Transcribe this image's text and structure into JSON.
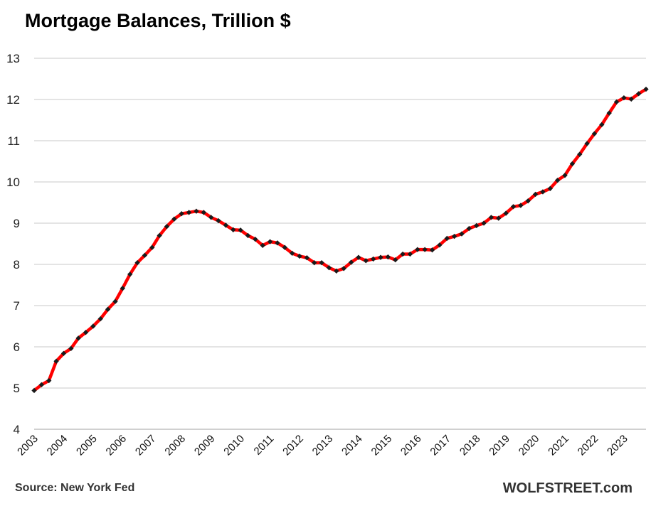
{
  "chart_data": {
    "type": "line",
    "title": "Mortgage Balances, Trillion $",
    "xlabel": "",
    "ylabel": "",
    "ylim": [
      4,
      13
    ],
    "yticks": [
      "4",
      "5",
      "6",
      "7",
      "8",
      "9",
      "10",
      "11",
      "12",
      "13"
    ],
    "xticks": [
      "2003",
      "2004",
      "2005",
      "2006",
      "2007",
      "2008",
      "2009",
      "2010",
      "2011",
      "2012",
      "2013",
      "2014",
      "2015",
      "2016",
      "2017",
      "2018",
      "2019",
      "2020",
      "2021",
      "2022",
      "2023"
    ],
    "grid": true,
    "legend": "none",
    "series": [
      {
        "name": "Mortgage Balances",
        "color": "#ff0000",
        "marker_color": "#1a1a1a",
        "x_start": 2003.0,
        "step": 0.25,
        "values": [
          4.94,
          5.08,
          5.18,
          5.65,
          5.84,
          5.96,
          6.21,
          6.35,
          6.5,
          6.68,
          6.91,
          7.1,
          7.42,
          7.76,
          8.04,
          8.22,
          8.41,
          8.7,
          8.92,
          9.1,
          9.23,
          9.26,
          9.29,
          9.26,
          9.14,
          9.06,
          8.95,
          8.84,
          8.83,
          8.7,
          8.61,
          8.46,
          8.55,
          8.52,
          8.41,
          8.27,
          8.2,
          8.16,
          8.04,
          8.04,
          7.92,
          7.84,
          7.9,
          8.05,
          8.17,
          8.09,
          8.13,
          8.17,
          8.18,
          8.11,
          8.25,
          8.25,
          8.36,
          8.36,
          8.35,
          8.47,
          8.63,
          8.68,
          8.74,
          8.87,
          8.94,
          9.0,
          9.14,
          9.12,
          9.24,
          9.4,
          9.43,
          9.54,
          9.7,
          9.76,
          9.84,
          10.04,
          10.16,
          10.44,
          10.67,
          10.93,
          11.17,
          11.39,
          11.67,
          11.94,
          12.04,
          12.01,
          12.14,
          12.25
        ]
      }
    ]
  },
  "footer": {
    "source": "Source: New York Fed",
    "brand": "WOLFSTREET.com"
  }
}
